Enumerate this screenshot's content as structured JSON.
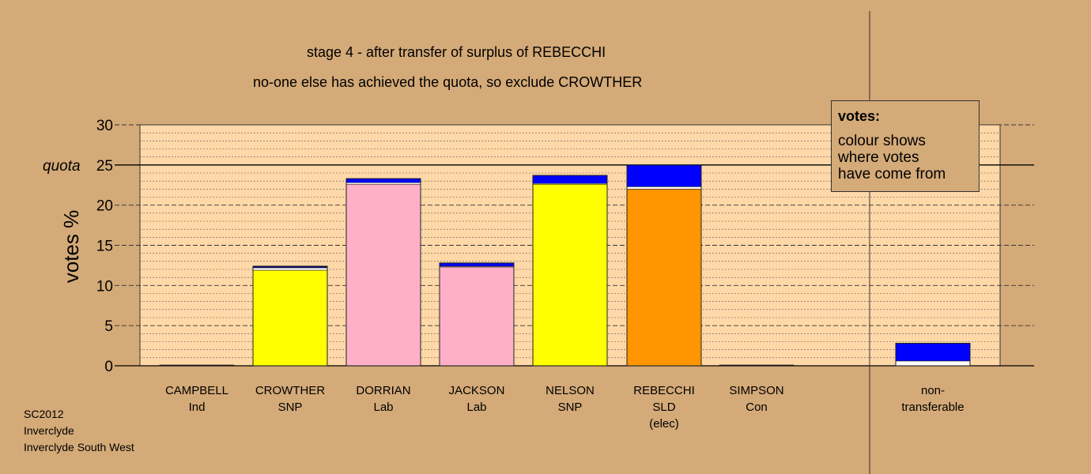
{
  "title": "stage 4 - after transfer of surplus of REBECCHI",
  "subtitle": "no-one else has achieved the quota, so exclude CROWTHER",
  "source_lines": [
    "SC2012",
    "Inverclyde",
    "Inverclyde South West"
  ],
  "legend": {
    "title": "votes:",
    "lines": [
      "colour shows",
      "where votes",
      "have come from"
    ]
  },
  "chart_data": {
    "type": "bar",
    "stacked": true,
    "title": "stage 4 - after transfer of surplus of REBECCHI",
    "subtitle": "no-one else has achieved the quota, so exclude CROWTHER",
    "ylabel": "votes %",
    "ylim": [
      0,
      30
    ],
    "yticks": [
      0,
      5,
      10,
      15,
      20,
      25,
      30
    ],
    "quota": 25,
    "quota_label": "quota",
    "grid": true,
    "legend_position": "top-right",
    "categories": [
      {
        "name": "CAMPBELL",
        "party": "Ind"
      },
      {
        "name": "CROWTHER",
        "party": "SNP"
      },
      {
        "name": "DORRIAN",
        "party": "Lab"
      },
      {
        "name": "JACKSON",
        "party": "Lab"
      },
      {
        "name": "NELSON",
        "party": "SNP"
      },
      {
        "name": "REBECCHI",
        "party": "SLD",
        "note": "(elec)"
      },
      {
        "name": "SIMPSON",
        "party": "Con"
      },
      {
        "name": "non-",
        "party": "transferable"
      }
    ],
    "stacks": [
      [
        {
          "value": 0.1,
          "color": "#000000"
        }
      ],
      [
        {
          "value": 11.9,
          "color": "#ffff00"
        },
        {
          "value": 0.3,
          "color": "#ffffff"
        },
        {
          "value": 0.2,
          "color": "#000080"
        }
      ],
      [
        {
          "value": 22.6,
          "color": "#ffb0c8"
        },
        {
          "value": 0.2,
          "color": "#ffffff"
        },
        {
          "value": 0.5,
          "color": "#0000ff"
        }
      ],
      [
        {
          "value": 12.3,
          "color": "#ffb0c8"
        },
        {
          "value": 0.1,
          "color": "#ffffff"
        },
        {
          "value": 0.4,
          "color": "#0000ff"
        }
      ],
      [
        {
          "value": 22.6,
          "color": "#ffff00"
        },
        {
          "value": 0.1,
          "color": "#ffffff"
        },
        {
          "value": 1.0,
          "color": "#0000ff"
        }
      ],
      [
        {
          "value": 22.0,
          "color": "#ff9500"
        },
        {
          "value": 0.3,
          "color": "#ffffff"
        },
        {
          "value": 2.7,
          "color": "#0000ff"
        }
      ],
      [
        {
          "value": 0.1,
          "color": "#000000"
        }
      ],
      [
        {
          "value": 0.6,
          "color": "#ffffff"
        },
        {
          "value": 2.2,
          "color": "#0000ff"
        }
      ]
    ]
  }
}
